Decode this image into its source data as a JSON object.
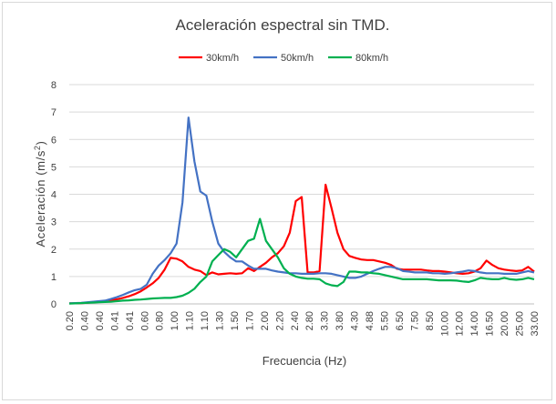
{
  "chart_data": {
    "type": "line",
    "title": "Aceleración espectral sin TMD.",
    "xlabel": "Frecuencia (Hz)",
    "ylabel_main": "Aceleración (m/s",
    "ylabel_sup": "2",
    "ylabel_end": ")",
    "ylim": [
      0,
      8
    ],
    "y_ticks": [
      "0",
      "1",
      "2",
      "3",
      "4",
      "5",
      "6",
      "7",
      "8"
    ],
    "grid": true,
    "legend_position": "top",
    "x_tick_labels": [
      "0.20",
      "0.40",
      "0.40",
      "0.41",
      "0.41",
      "0.60",
      "0.80",
      "1.00",
      "1.10",
      "1.10",
      "1.30",
      "1.50",
      "1.70",
      "2.00",
      "2.20",
      "2.40",
      "2.80",
      "3.30",
      "3.80",
      "4.30",
      "4.88",
      "5.50",
      "6.50",
      "7.50",
      "8.50",
      "10.00",
      "12.00",
      "14.00",
      "16.50",
      "20.00",
      "25.00",
      "33.00"
    ],
    "point_count": 79,
    "series": [
      {
        "name": "30km/h",
        "color": "#ff0000",
        "values": [
          0.02,
          0.02,
          0.03,
          0.04,
          0.06,
          0.08,
          0.1,
          0.13,
          0.17,
          0.22,
          0.28,
          0.36,
          0.46,
          0.6,
          0.75,
          0.95,
          1.25,
          1.68,
          1.65,
          1.55,
          1.35,
          1.25,
          1.2,
          1.05,
          1.15,
          1.08,
          1.1,
          1.12,
          1.1,
          1.12,
          1.3,
          1.2,
          1.35,
          1.5,
          1.7,
          1.85,
          2.1,
          2.6,
          3.75,
          3.9,
          1.15,
          1.15,
          1.2,
          4.35,
          3.5,
          2.6,
          2.0,
          1.75,
          1.68,
          1.62,
          1.6,
          1.6,
          1.55,
          1.5,
          1.42,
          1.28,
          1.25,
          1.25,
          1.25,
          1.25,
          1.22,
          1.2,
          1.2,
          1.18,
          1.15,
          1.12,
          1.1,
          1.12,
          1.18,
          1.3,
          1.58,
          1.42,
          1.3,
          1.25,
          1.22,
          1.2,
          1.22,
          1.35,
          1.18
        ]
      },
      {
        "name": "50km/h",
        "color": "#4472c4",
        "values": [
          0.02,
          0.03,
          0.04,
          0.06,
          0.08,
          0.1,
          0.12,
          0.18,
          0.25,
          0.33,
          0.42,
          0.5,
          0.55,
          0.7,
          1.1,
          1.4,
          1.6,
          1.85,
          2.2,
          3.7,
          6.8,
          5.2,
          4.1,
          3.95,
          3.0,
          2.2,
          1.9,
          1.7,
          1.55,
          1.55,
          1.4,
          1.28,
          1.28,
          1.28,
          1.22,
          1.18,
          1.15,
          1.12,
          1.12,
          1.1,
          1.1,
          1.1,
          1.12,
          1.12,
          1.1,
          1.05,
          1.0,
          0.95,
          0.95,
          1.0,
          1.1,
          1.2,
          1.28,
          1.35,
          1.35,
          1.3,
          1.2,
          1.18,
          1.15,
          1.15,
          1.15,
          1.12,
          1.12,
          1.1,
          1.12,
          1.15,
          1.18,
          1.22,
          1.2,
          1.15,
          1.12,
          1.12,
          1.12,
          1.1,
          1.1,
          1.1,
          1.15,
          1.2,
          1.15
        ]
      },
      {
        "name": "80km/h",
        "color": "#00b050",
        "values": [
          0.01,
          0.02,
          0.03,
          0.04,
          0.05,
          0.06,
          0.07,
          0.08,
          0.1,
          0.12,
          0.13,
          0.15,
          0.16,
          0.18,
          0.2,
          0.21,
          0.22,
          0.22,
          0.25,
          0.3,
          0.4,
          0.55,
          0.8,
          1.0,
          1.55,
          1.78,
          2.0,
          1.9,
          1.7,
          2.0,
          2.3,
          2.38,
          3.1,
          2.3,
          2.0,
          1.7,
          1.3,
          1.1,
          1.0,
          0.95,
          0.92,
          0.92,
          0.9,
          0.75,
          0.68,
          0.65,
          0.8,
          1.18,
          1.18,
          1.15,
          1.15,
          1.12,
          1.1,
          1.05,
          1.0,
          0.95,
          0.9,
          0.9,
          0.9,
          0.9,
          0.9,
          0.88,
          0.86,
          0.86,
          0.86,
          0.85,
          0.82,
          0.8,
          0.86,
          0.95,
          0.92,
          0.9,
          0.9,
          0.95,
          0.9,
          0.88,
          0.9,
          0.95,
          0.9
        ]
      }
    ]
  }
}
